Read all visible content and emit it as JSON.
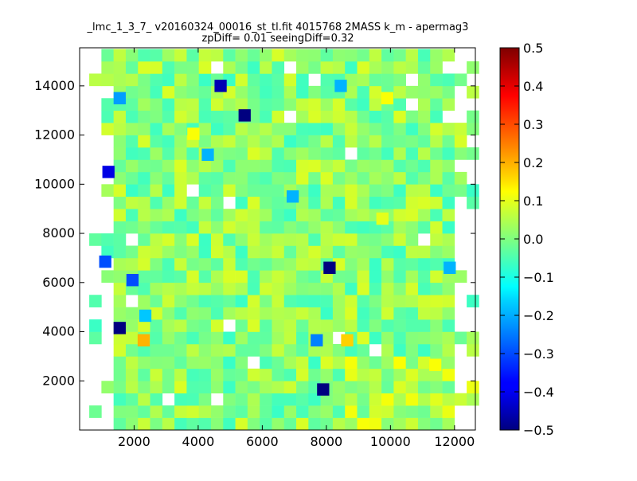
{
  "chart_data": {
    "type": "heatmap",
    "title_lines": [
      "_lmc_1_3_7_ v20160324_00016_st_tl.fit 4015768 2MASS k_m - apermag3",
      "zpDiff= 0.01 seeingDiff=0.32"
    ],
    "xlabel": "",
    "ylabel": "",
    "xlim": [
      300,
      12650
    ],
    "ylim": [
      0,
      15550
    ],
    "x_ticks": [
      2000,
      4000,
      6000,
      8000,
      10000,
      12000
    ],
    "y_ticks": [
      2000,
      4000,
      6000,
      8000,
      10000,
      12000,
      14000
    ],
    "x_tick_labels": [
      "2000",
      "4000",
      "6000",
      "8000",
      "10000",
      "12000"
    ],
    "y_tick_labels": [
      "2000",
      "4000",
      "6000",
      "8000",
      "10000",
      "12000",
      "14000"
    ],
    "bin_size": {
      "x": 380,
      "y": 500
    },
    "colormap": "jet",
    "colorbar": {
      "vmin": -0.5,
      "vmax": 0.5,
      "ticks": [
        -0.5,
        -0.4,
        -0.3,
        -0.2,
        -0.1,
        0.0,
        0.1,
        0.2,
        0.3,
        0.4,
        0.5
      ],
      "tick_labels": [
        "−0.5",
        "−0.4",
        "−0.3",
        "−0.2",
        "−0.1",
        "0.0",
        "0.1",
        "0.2",
        "0.3",
        "0.4",
        "0.5"
      ]
    },
    "outliers": [
      {
        "x": 4700,
        "y": 14000,
        "value": -0.45
      },
      {
        "x": 5450,
        "y": 12800,
        "value": -0.5
      },
      {
        "x": 1200,
        "y": 10500,
        "value": -0.4
      },
      {
        "x": 1550,
        "y": 4150,
        "value": -0.5
      },
      {
        "x": 8100,
        "y": 6600,
        "value": -0.5
      },
      {
        "x": 7900,
        "y": 1650,
        "value": -0.5
      },
      {
        "x": 2300,
        "y": 3650,
        "value": 0.2
      },
      {
        "x": 8650,
        "y": 3650,
        "value": 0.17
      },
      {
        "x": 1100,
        "y": 6850,
        "value": -0.3
      },
      {
        "x": 1950,
        "y": 6100,
        "value": -0.3
      },
      {
        "x": 1550,
        "y": 13500,
        "value": -0.22
      },
      {
        "x": 4300,
        "y": 11200,
        "value": -0.2
      },
      {
        "x": 6950,
        "y": 9500,
        "value": -0.2
      },
      {
        "x": 7700,
        "y": 3650,
        "value": -0.25
      },
      {
        "x": 11850,
        "y": 6600,
        "value": -0.2
      },
      {
        "x": 8450,
        "y": 14000,
        "value": -0.2
      },
      {
        "x": 2350,
        "y": 4650,
        "value": -0.18
      },
      {
        "x": 9900,
        "y": 13500,
        "value": 0.12
      },
      {
        "x": 3850,
        "y": 12050,
        "value": 0.12
      },
      {
        "x": 11400,
        "y": 2650,
        "value": 0.12
      },
      {
        "x": 9750,
        "y": 8600,
        "value": 0.1
      }
    ]
  }
}
